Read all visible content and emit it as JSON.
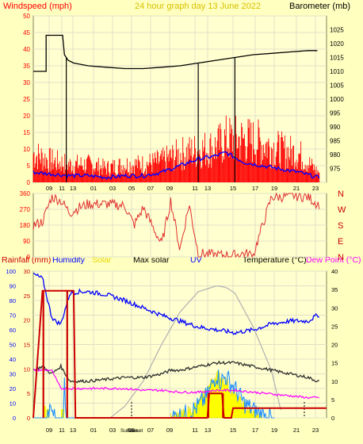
{
  "title": "24 hour graph day  13 June 2022",
  "colors": {
    "background": "#ffffc0",
    "wind": "#ff0000",
    "gust_avg": "#0000ff",
    "barometer": "#000000",
    "direction": "#e03030",
    "humidity": "#0000ff",
    "solar": "#ffff00",
    "max_solar": "#b0b0b0",
    "uv": "#1e90ff",
    "temperature": "#303030",
    "dew_point": "#ff00ff",
    "rainfall": "#cc0000",
    "grid": "#e0e0c8"
  },
  "chart_data": [
    {
      "type": "line",
      "title": "24 hour graph day  13 June 2022",
      "left_label": "Windspeed (mph)",
      "right_label": "Barometer (mb)",
      "ylim_left": [
        0,
        50
      ],
      "ylim_right": [
        970,
        1030
      ],
      "y_ticks_left": [
        "0",
        "5",
        "10",
        "15",
        "20",
        "25",
        "30",
        "35",
        "40",
        "45",
        "50"
      ],
      "y_ticks_right": [
        "975",
        "980",
        "985",
        "990",
        "995",
        "1000",
        "1005",
        "1010",
        "1015",
        "1020",
        "1025"
      ],
      "x_ticks": [
        "09",
        "11",
        "13",
        "01",
        "03",
        "05",
        "07",
        "09",
        "11",
        "13",
        "15",
        "17",
        "19",
        "21",
        "23"
      ],
      "x_range_hours": [
        8,
        24
      ],
      "series": [
        {
          "name": "Barometer",
          "axis": "right",
          "x": [
            8.0,
            8.7,
            8.7,
            9.6,
            9.7,
            9.8,
            9.9,
            10.2,
            11,
            12,
            13,
            14,
            15,
            16,
            17,
            18,
            19,
            20,
            21,
            22,
            23,
            23.5
          ],
          "y": [
            1010,
            1010,
            1023,
            1023,
            1016,
            1015,
            1014,
            1013,
            1012,
            1011.5,
            1011,
            1011,
            1011.5,
            1012,
            1013,
            1014,
            1015,
            1016,
            1016.5,
            1017,
            1017.5,
            1017.5
          ]
        },
        {
          "name": "Wind speed",
          "axis": "left",
          "x": [
            8.0,
            9.0,
            10.0,
            11.0,
            12.0,
            13.0,
            14.0,
            15.0,
            16.0,
            17.0,
            18.0,
            18.5,
            19.5,
            20.5,
            21.5,
            22.5,
            23.5
          ],
          "y": [
            8,
            6,
            5,
            5,
            4,
            5,
            5,
            6,
            8,
            9,
            10,
            12,
            12,
            11,
            9,
            8,
            3
          ]
        },
        {
          "name": "Average wind",
          "axis": "left",
          "x": [
            8.0,
            9.0,
            10.0,
            11.0,
            12.0,
            13.0,
            14.0,
            15.0,
            16.0,
            17.0,
            18.0,
            18.5,
            19.5,
            20.5,
            21.5,
            22.5,
            23.5
          ],
          "y": [
            3,
            2.5,
            2,
            2,
            1.5,
            2,
            2,
            3,
            5,
            7,
            8,
            9,
            6,
            5,
            4,
            3,
            1.5
          ]
        }
      ]
    },
    {
      "type": "line",
      "left_ticks": [
        "0",
        "90",
        "180",
        "270",
        "360"
      ],
      "right_ticks": [
        "N",
        "W",
        "S",
        "E",
        "N"
      ],
      "ylim": [
        0,
        360
      ],
      "series": [
        {
          "name": "Wind direction",
          "x": [
            8.0,
            8.5,
            9.0,
            9.5,
            10.0,
            10.5,
            11.0,
            12.0,
            13.0,
            13.5,
            14.0,
            15.0,
            15.5,
            16.0,
            16.5,
            17.0,
            18.0,
            19.0,
            19.5,
            20.0,
            21.0,
            21.5,
            22.0,
            23.0,
            23.5
          ],
          "y": [
            180,
            200,
            340,
            320,
            250,
            280,
            300,
            300,
            290,
            180,
            280,
            70,
            320,
            40,
            300,
            20,
            10,
            10,
            20,
            10,
            340,
            340,
            350,
            340,
            300
          ]
        }
      ]
    },
    {
      "type": "line",
      "labels": [
        "Rainfall (mm)",
        "Humidity",
        "Solar",
        "Max solar",
        "UV",
        "Temperature (°C)",
        "Dew Point (°C)"
      ],
      "label_colors": [
        "#cc0000",
        "#0000ff",
        "#e8d800",
        "#000000",
        "#0000ff",
        "#000000",
        "#ff00ff"
      ],
      "humidity_ticks": [
        "0",
        "10",
        "20",
        "30",
        "40",
        "50",
        "60",
        "70",
        "80",
        "90",
        "100"
      ],
      "rain_ticks": [
        "0",
        "5",
        "10",
        "15",
        "20",
        "25",
        "30"
      ],
      "temp_ticks": [
        "0",
        "5",
        "10",
        "15",
        "20",
        "25",
        "30",
        "35",
        "40"
      ],
      "ylim_humidity": [
        0,
        100
      ],
      "ylim_rain": [
        0,
        30
      ],
      "ylim_temp": [
        0,
        40
      ],
      "x_ticks": [
        "09",
        "11",
        "13",
        "01",
        "03",
        "05",
        "07",
        "09",
        "11",
        "13",
        "15",
        "17",
        "19",
        "21",
        "23"
      ],
      "sunrise_label": "Sunrise",
      "sunset_label": "Sunset",
      "series": [
        {
          "name": "Humidity",
          "x": [
            8.0,
            8.5,
            9.0,
            9.2,
            9.5,
            10.0,
            10.5,
            11.0,
            12.0,
            13.0,
            14.0,
            15.0,
            16.0,
            17.0,
            18.0,
            19.0,
            20.0,
            21.0,
            22.0,
            23.0,
            23.5
          ],
          "y": [
            98,
            95,
            69,
            66,
            64,
            85,
            86,
            86,
            84,
            80,
            75,
            70,
            66,
            62,
            60,
            58,
            60,
            64,
            66,
            66,
            70
          ]
        },
        {
          "name": "Temperature",
          "x": [
            8.0,
            8.5,
            9.0,
            9.5,
            10.0,
            11.0,
            12.0,
            13.0,
            14.0,
            14.5,
            15.0,
            15.5,
            16.0,
            17.0,
            18.0,
            19.0,
            20.0,
            21.0,
            22.0,
            23.0,
            23.5
          ],
          "y": [
            13,
            14,
            12,
            14,
            10,
            10,
            10.5,
            11,
            11,
            11.5,
            12,
            13,
            13,
            14,
            15,
            15,
            14,
            13,
            12,
            11,
            10
          ]
        },
        {
          "name": "Dew Point",
          "x": [
            8.0,
            9.0,
            9.5,
            10.0,
            11.0,
            12.0,
            13.0,
            14.0,
            15.0,
            16.0,
            17.0,
            18.0,
            19.0,
            20.0,
            21.0,
            22.0,
            23.0,
            23.5
          ],
          "y": [
            13,
            13,
            8,
            8,
            8,
            8,
            8,
            7.5,
            7.5,
            7,
            7,
            7.5,
            7.5,
            7,
            6.5,
            6,
            5.5,
            5.5
          ]
        },
        {
          "name": "Max solar",
          "x": [
            12.2,
            13,
            14,
            15,
            16,
            17,
            18,
            18.5,
            19,
            20,
            21,
            21.6
          ],
          "y": [
            0,
            8,
            25,
            50,
            72,
            86,
            90,
            89,
            85,
            62,
            32,
            0
          ]
        },
        {
          "name": "Solar",
          "x": [
            15.5,
            16.0,
            16.5,
            17.0,
            17.5,
            18.0,
            18.5,
            19.0,
            19.5,
            20.0,
            20.5
          ],
          "y": [
            0,
            1,
            5,
            10,
            20,
            30,
            25,
            15,
            8,
            3,
            0
          ]
        },
        {
          "name": "UV",
          "x": [
            8.0,
            8.8,
            9.0,
            9.2,
            9.6,
            9.7,
            9.8,
            10.2,
            15.5,
            16.5,
            17.0,
            17.5,
            18.0,
            18.2,
            18.5,
            19.0,
            19.5,
            20.0,
            20.5,
            21.0
          ],
          "y": [
            0,
            0,
            6,
            0,
            0,
            22,
            0,
            0,
            0,
            3,
            8,
            15,
            30,
            25,
            28,
            20,
            10,
            5,
            2,
            0
          ]
        },
        {
          "name": "Rainfall",
          "x": [
            8.0,
            8.5,
            9.5,
            9.8,
            10.2,
            10.3,
            17.5,
            17.6,
            18.3,
            18.4,
            18.8,
            18.9,
            24.0
          ],
          "y": [
            0,
            26,
            26,
            26,
            26,
            0,
            0,
            5,
            5,
            0,
            0,
            2,
            2
          ]
        }
      ]
    }
  ]
}
